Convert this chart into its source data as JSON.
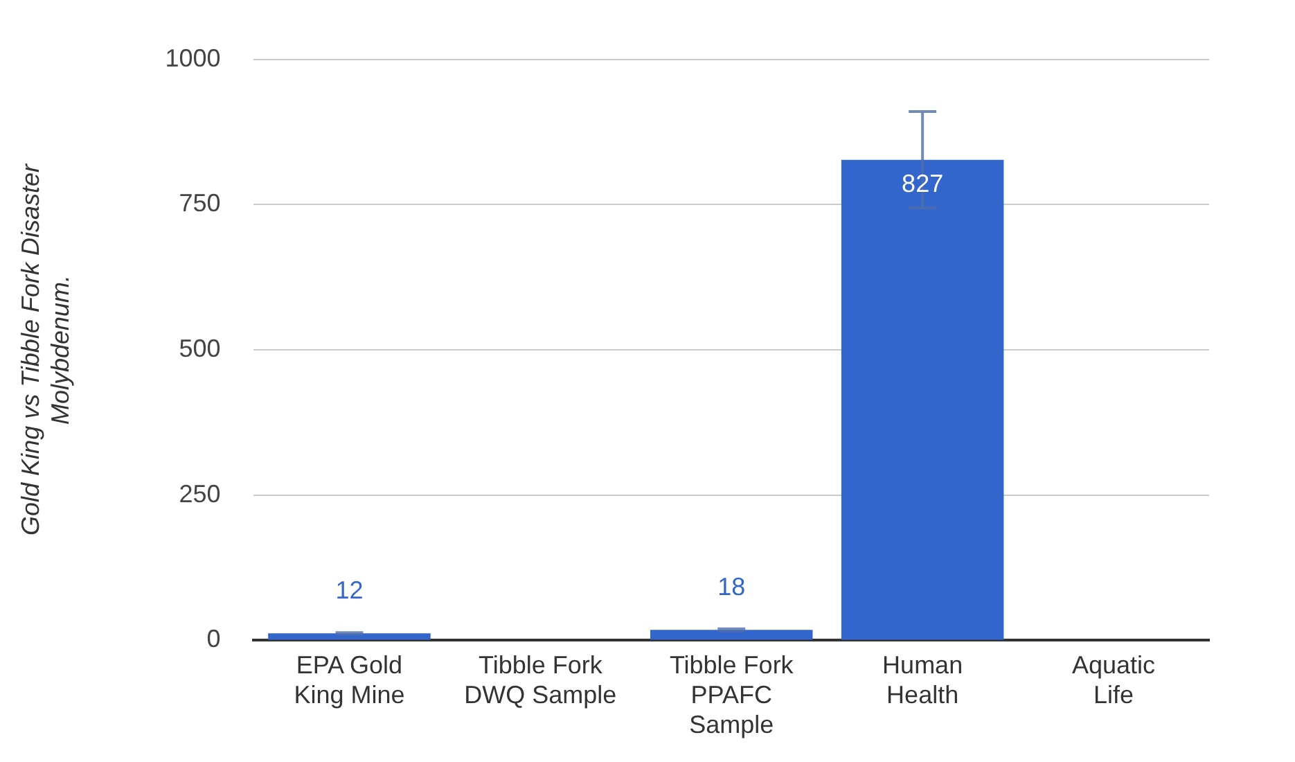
{
  "chart_data": {
    "type": "bar",
    "ylabel": "Gold King vs Tibble Fork Disaster Molybdenum.",
    "categories": [
      "EPA Gold King Mine",
      "Tibble Fork DWQ Sample",
      "Tibble Fork PPAFC Sample",
      "Human Health",
      "Aquatic Life"
    ],
    "values": [
      12,
      null,
      18,
      827,
      null
    ],
    "errors": [
      1.2,
      null,
      1.8,
      83,
      null
    ],
    "color": "#3366cc",
    "ylim": [
      0,
      1000
    ],
    "yticks": [
      0,
      250,
      500,
      750,
      1000
    ],
    "grid": "y",
    "data_labels": true
  }
}
